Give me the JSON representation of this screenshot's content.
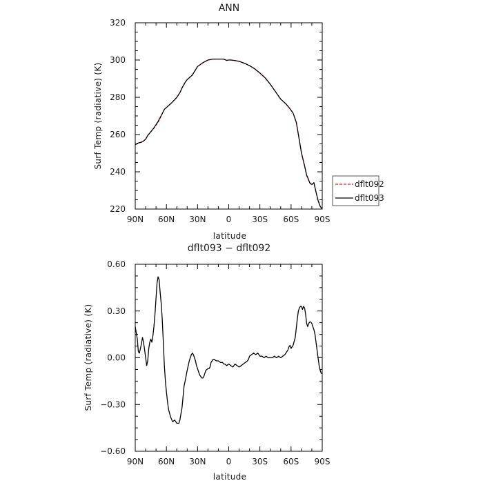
{
  "chart_data": [
    {
      "type": "line",
      "title": "ANN",
      "xlabel": "latitude",
      "ylabel": "Surf Temp (radiative) (K)",
      "xlim": [
        90,
        -90
      ],
      "ylim": [
        220,
        320
      ],
      "xticks": [
        "90N",
        "60N",
        "30N",
        "0",
        "30S",
        "60S",
        "90S"
      ],
      "yticks": [
        "220",
        "240",
        "260",
        "280",
        "300",
        "320"
      ],
      "legend": {
        "placement": "right"
      },
      "series": [
        {
          "name": "dflt092",
          "color": "#d62728",
          "dash": "dashed",
          "x": [
            90,
            87,
            83,
            80,
            78,
            75,
            72,
            68,
            65,
            62,
            60,
            55,
            50,
            47,
            45,
            42,
            40,
            35,
            30,
            25,
            20,
            15,
            10,
            5,
            2,
            0,
            -2,
            -5,
            -10,
            -15,
            -20,
            -25,
            -30,
            -35,
            -40,
            -45,
            -50,
            -55,
            -58,
            -62,
            -65,
            -67,
            -70,
            -73,
            -75,
            -78,
            -80,
            -82,
            -84,
            -86,
            -88,
            -90
          ],
          "values": [
            254.5,
            255.5,
            256,
            257.5,
            259.5,
            261.5,
            263.5,
            266.5,
            270,
            273.5,
            274.5,
            277,
            280,
            282.5,
            285,
            288,
            289.5,
            292,
            296.5,
            298.5,
            300,
            300.5,
            300.5,
            300.5,
            299.8,
            300,
            300,
            299.8,
            299.3,
            298.3,
            297,
            295.3,
            293,
            290.5,
            287,
            283,
            279,
            276.5,
            274.5,
            271.5,
            266.5,
            260,
            250,
            243,
            238,
            234,
            233,
            234,
            229,
            224.5,
            221.5,
            220
          ]
        },
        {
          "name": "dflt093",
          "color": "#000000",
          "dash": "solid",
          "x": [
            90,
            87,
            83,
            80,
            78,
            75,
            72,
            68,
            65,
            62,
            60,
            55,
            50,
            47,
            45,
            42,
            40,
            35,
            30,
            25,
            20,
            15,
            10,
            5,
            2,
            0,
            -2,
            -5,
            -10,
            -15,
            -20,
            -25,
            -30,
            -35,
            -40,
            -45,
            -50,
            -55,
            -58,
            -62,
            -65,
            -67,
            -70,
            -73,
            -75,
            -78,
            -80,
            -82,
            -84,
            -86,
            -88,
            -90
          ],
          "values": [
            254.7,
            255.5,
            256.1,
            257.5,
            259.5,
            261.5,
            263.6,
            267,
            270.2,
            273.5,
            274.5,
            277,
            279.9,
            282.5,
            285,
            288,
            289.5,
            292,
            296.5,
            298.5,
            300,
            300.5,
            300.5,
            300.5,
            299.8,
            300,
            300,
            299.8,
            299.3,
            298.3,
            297,
            295.3,
            293,
            290.5,
            287,
            283,
            279,
            276.5,
            274.5,
            271.5,
            266.6,
            260.1,
            250.2,
            243.3,
            238.3,
            234.2,
            233.2,
            234.2,
            229.1,
            224.6,
            221.5,
            219.9
          ]
        }
      ]
    },
    {
      "type": "line",
      "title": "dflt093 − dflt092",
      "xlabel": "latitude",
      "ylabel": "Surf Temp (radiative) (K)",
      "xlim": [
        90,
        -90
      ],
      "ylim": [
        -0.6,
        0.6
      ],
      "xticks": [
        "90N",
        "60N",
        "30N",
        "0",
        "30S",
        "60S",
        "90S"
      ],
      "yticks": [
        "−0.60",
        "−0.30",
        "0.00",
        "0.30",
        "0.60"
      ],
      "series": [
        {
          "color": "#000000",
          "dash": "solid",
          "x": [
            90,
            88,
            87,
            86,
            85,
            84,
            83,
            82,
            81,
            80,
            79,
            78,
            77,
            76,
            75,
            74,
            73,
            72,
            71,
            70,
            69,
            68,
            67,
            66,
            65,
            64,
            63,
            62,
            61,
            60,
            59,
            58,
            56,
            54,
            52,
            50,
            48,
            47,
            45,
            44,
            43,
            42,
            40,
            38,
            37,
            36,
            35,
            34,
            33,
            32,
            31,
            30,
            28,
            26,
            25,
            24,
            22,
            20,
            19,
            18,
            17,
            16,
            15,
            14,
            12,
            10,
            8,
            6,
            5,
            4,
            2,
            0,
            -2,
            -4,
            -6,
            -8,
            -10,
            -12,
            -14,
            -16,
            -18,
            -19,
            -20,
            -22,
            -24,
            -26,
            -28,
            -30,
            -32,
            -34,
            -36,
            -38,
            -40,
            -42,
            -44,
            -46,
            -48,
            -50,
            -52,
            -54,
            -56,
            -57,
            -58,
            -59,
            -60,
            -62,
            -64,
            -66,
            -67,
            -68,
            -69,
            -70,
            -71,
            -72,
            -73,
            -74,
            -75,
            -76,
            -77,
            -78,
            -79,
            -80,
            -81,
            -82,
            -83,
            -84,
            -85,
            -86,
            -87,
            -88,
            -89,
            -90
          ],
          "values": [
            0.2,
            0.12,
            0.04,
            0.03,
            0.06,
            0.09,
            0.13,
            0.1,
            0.05,
            0,
            -0.05,
            -0.02,
            0.06,
            0.1,
            0.12,
            0.1,
            0.14,
            0.2,
            0.28,
            0.38,
            0.48,
            0.52,
            0.5,
            0.42,
            0.35,
            0.25,
            0.1,
            -0.05,
            -0.15,
            -0.22,
            -0.28,
            -0.33,
            -0.38,
            -0.41,
            -0.4,
            -0.42,
            -0.42,
            -0.4,
            -0.32,
            -0.25,
            -0.18,
            -0.15,
            -0.08,
            -0.02,
            0,
            0.02,
            0.03,
            0.02,
            0,
            -0.02,
            -0.05,
            -0.07,
            -0.11,
            -0.13,
            -0.13,
            -0.12,
            -0.08,
            -0.07,
            -0.07,
            -0.06,
            -0.03,
            -0.02,
            -0.01,
            -0.01,
            -0.02,
            -0.02,
            -0.03,
            -0.03,
            -0.04,
            -0.04,
            -0.05,
            -0.04,
            -0.05,
            -0.06,
            -0.04,
            -0.05,
            -0.06,
            -0.05,
            -0.04,
            -0.03,
            -0.02,
            -0.01,
            0.01,
            0.02,
            0.03,
            0.02,
            0.03,
            0.01,
            0.01,
            0,
            0.01,
            0,
            0,
            0,
            0.01,
            0,
            0.01,
            0,
            0.01,
            0.02,
            0.04,
            0.05,
            0.07,
            0.08,
            0.06,
            0.08,
            0.13,
            0.25,
            0.3,
            0.32,
            0.33,
            0.33,
            0.31,
            0.33,
            0.32,
            0.28,
            0.22,
            0.2,
            0.22,
            0.23,
            0.23,
            0.22,
            0.2,
            0.18,
            0.15,
            0.1,
            0.05,
            0,
            -0.05,
            -0.08,
            -0.1,
            -0.1
          ]
        }
      ]
    }
  ]
}
